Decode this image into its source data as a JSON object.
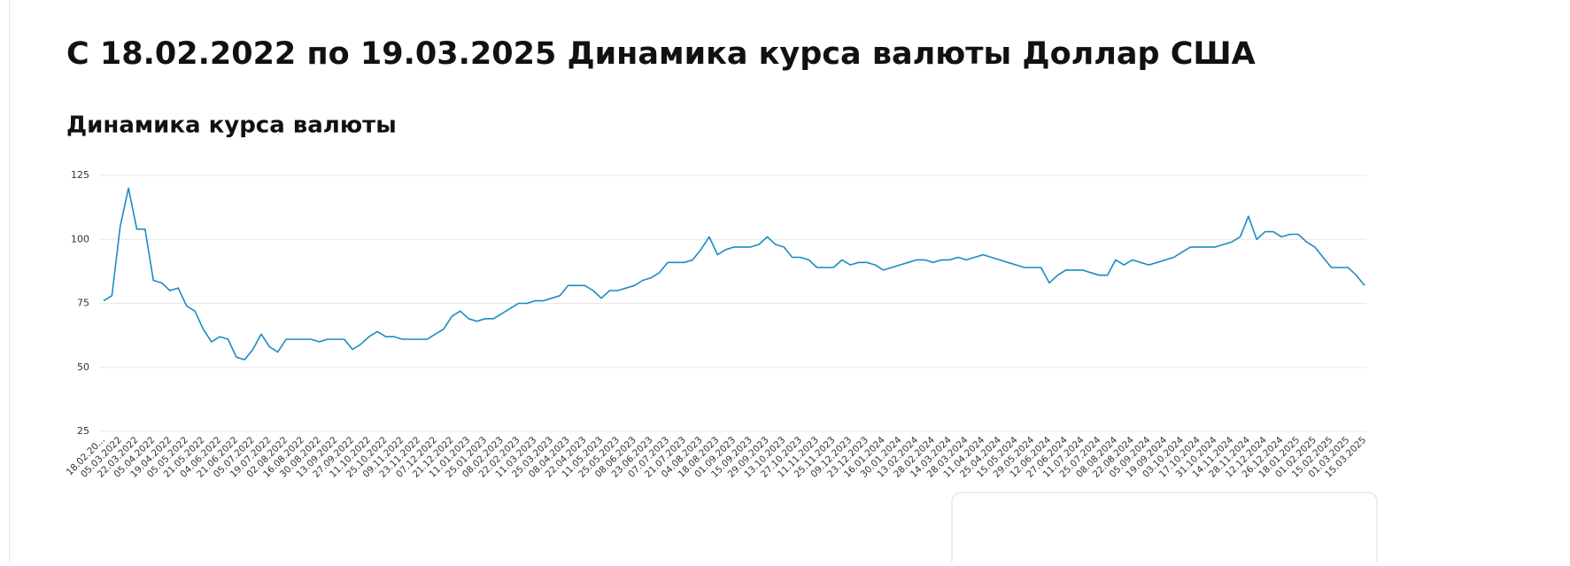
{
  "heading": "С 18.02.2022 по 19.03.2025 Динамика курса валюты Доллар США",
  "chart_data": {
    "type": "line",
    "title": "Динамика курса валюты",
    "categories": [
      "18.02.20...",
      null,
      "05.03.2022",
      null,
      "22.03.2022",
      null,
      "05.04.2022",
      null,
      "19.04.2022",
      null,
      "05.05.2022",
      null,
      "21.05.2022",
      null,
      "04.06.2022",
      null,
      "21.06.2022",
      null,
      "05.07.2022",
      null,
      "19.07.2022",
      null,
      "02.08.2022",
      null,
      "16.08.2022",
      null,
      "30.08.2022",
      null,
      "13.09.2022",
      null,
      "27.09.2022",
      null,
      "11.10.2022",
      null,
      "25.10.2022",
      null,
      "09.11.2022",
      null,
      "23.11.2022",
      null,
      "07.12.2022",
      null,
      "21.12.2022",
      null,
      "11.01.2023",
      null,
      "25.01.2023",
      null,
      "08.02.2023",
      null,
      "22.02.2023",
      null,
      "11.03.2023",
      null,
      "25.03.2023",
      null,
      "08.04.2023",
      null,
      "22.04.2023",
      null,
      "11.05.2023",
      null,
      "25.05.2023",
      null,
      "08.06.2023",
      null,
      "23.06.2023",
      null,
      "07.07.2023",
      null,
      "21.07.2023",
      null,
      "04.08.2023",
      null,
      "18.08.2023",
      null,
      "01.09.2023",
      null,
      "15.09.2023",
      null,
      "29.09.2023",
      null,
      "13.10.2023",
      null,
      "27.10.2023",
      null,
      "11.11.2023",
      null,
      "25.11.2023",
      null,
      "09.12.2023",
      null,
      "23.12.2023",
      null,
      "16.01.2024",
      null,
      "30.01.2024",
      null,
      "13.02.2024",
      null,
      "28.02.2024",
      null,
      "14.03.2024",
      null,
      "28.03.2024",
      null,
      "11.04.2024",
      null,
      "25.04.2024",
      null,
      "15.05.2024",
      null,
      "29.05.2024",
      null,
      "12.06.2024",
      null,
      "27.06.2024",
      null,
      "11.07.2024",
      null,
      "25.07.2024",
      null,
      "08.08.2024",
      null,
      "22.08.2024",
      null,
      "05.09.2024",
      null,
      "19.09.2024",
      null,
      "03.10.2024",
      null,
      "17.10.2024",
      null,
      "31.10.2024",
      null,
      "14.11.2024",
      null,
      "28.11.2024",
      null,
      "12.12.2024",
      null,
      "26.12.2024",
      null,
      "18.01.2025",
      null,
      "01.02.2025",
      null,
      "15.02.2025",
      null,
      "01.03.2025",
      null,
      "15.03.2025"
    ],
    "values": [
      76,
      78,
      105,
      120,
      104,
      104,
      84,
      83,
      80,
      81,
      74,
      72,
      65,
      60,
      62,
      61,
      54,
      53,
      57,
      63,
      58,
      56,
      61,
      61,
      61,
      61,
      60,
      61,
      61,
      61,
      57,
      59,
      62,
      64,
      62,
      62,
      61,
      61,
      61,
      61,
      63,
      65,
      70,
      72,
      69,
      68,
      69,
      69,
      71,
      73,
      75,
      75,
      76,
      76,
      77,
      78,
      82,
      82,
      82,
      80,
      77,
      80,
      80,
      81,
      82,
      84,
      85,
      87,
      91,
      91,
      91,
      92,
      96,
      101,
      94,
      96,
      97,
      97,
      97,
      98,
      101,
      98,
      97,
      93,
      93,
      92,
      89,
      89,
      89,
      92,
      90,
      91,
      91,
      90,
      88,
      89,
      90,
      91,
      92,
      92,
      91,
      92,
      92,
      93,
      92,
      93,
      94,
      93,
      92,
      91,
      90,
      89,
      89,
      89,
      83,
      86,
      88,
      88,
      88,
      87,
      86,
      86,
      92,
      90,
      92,
      91,
      90,
      91,
      92,
      93,
      95,
      97,
      97,
      97,
      97,
      98,
      99,
      101,
      109,
      100,
      103,
      103,
      101,
      102,
      102,
      99,
      97,
      93,
      89,
      89,
      89,
      86,
      82
    ],
    "color": "#1a8cc2",
    "ylim": [
      25,
      125
    ],
    "yticks": [
      25,
      50,
      75,
      100,
      125
    ],
    "grid": true
  }
}
